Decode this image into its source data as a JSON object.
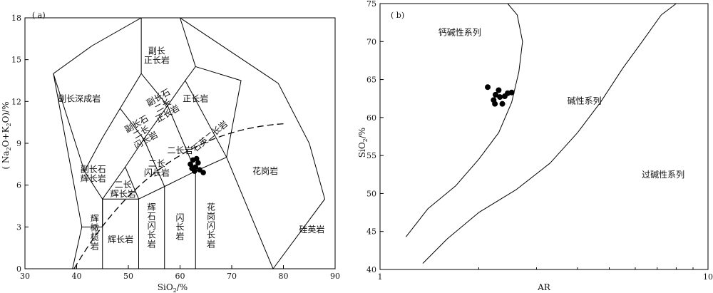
{
  "chart_data": [
    {
      "type": "scatter",
      "panel_label": "( a)",
      "xlabel": "SiO",
      "xlabel_sub": "2",
      "xlabel_unit": "/%",
      "ylabel": "( Na",
      "ylabel_sub1": "2",
      "ylabel_mid": "O+K",
      "ylabel_sub2": "2",
      "ylabel_end": "O)/%",
      "xlim": [
        30,
        90
      ],
      "ylim": [
        0,
        18
      ],
      "xticks": [
        30,
        40,
        50,
        60,
        70,
        80,
        90
      ],
      "yticks": [
        0,
        3,
        6,
        9,
        12,
        15,
        18
      ],
      "regions": [
        "副长深成岩",
        "副长\n正长岩",
        "正长岩",
        "副长石\n二长\n正长岩",
        "副长石\n二长\n闪长岩",
        "二长岩",
        "石英二长岩",
        "二长\n闪长岩",
        "副长石\n辉长岩",
        "二长\n辉长岩",
        "花岗岩",
        "辉\n石\n闪\n长\n岩",
        "闪\n长\n岩",
        "花\n岗\n闪\n长\n岩",
        "辉长岩",
        "辉\n橄\n榄\n岩",
        "硅英岩"
      ],
      "points": [
        {
          "x": 62.0,
          "y": 7.5
        },
        {
          "x": 62.5,
          "y": 7.8
        },
        {
          "x": 63.0,
          "y": 7.3
        },
        {
          "x": 62.3,
          "y": 7.2
        },
        {
          "x": 63.5,
          "y": 7.6
        },
        {
          "x": 63.8,
          "y": 7.1
        },
        {
          "x": 62.8,
          "y": 7.0
        },
        {
          "x": 64.5,
          "y": 6.9
        },
        {
          "x": 63.2,
          "y": 7.9
        }
      ]
    },
    {
      "type": "scatter",
      "panel_label": "( b)",
      "xlabel": "AR",
      "ylabel": "SiO",
      "ylabel_sub": "2",
      "ylabel_unit": "/%",
      "xscale": "log",
      "xlim": [
        1,
        10
      ],
      "ylim": [
        40,
        75
      ],
      "xticks": [
        1,
        10
      ],
      "yticks": [
        40,
        45,
        50,
        55,
        60,
        65,
        70,
        75
      ],
      "regions": [
        "钙碱性系列",
        "碱性系列",
        "过碱性系列"
      ],
      "points": [
        {
          "x": 2.13,
          "y": 64.0
        },
        {
          "x": 2.25,
          "y": 63.0
        },
        {
          "x": 2.3,
          "y": 63.6
        },
        {
          "x": 2.22,
          "y": 62.3
        },
        {
          "x": 2.32,
          "y": 62.7
        },
        {
          "x": 2.4,
          "y": 62.8
        },
        {
          "x": 2.36,
          "y": 61.8
        },
        {
          "x": 2.45,
          "y": 63.2
        },
        {
          "x": 2.52,
          "y": 63.3
        },
        {
          "x": 2.24,
          "y": 61.8
        }
      ]
    }
  ]
}
